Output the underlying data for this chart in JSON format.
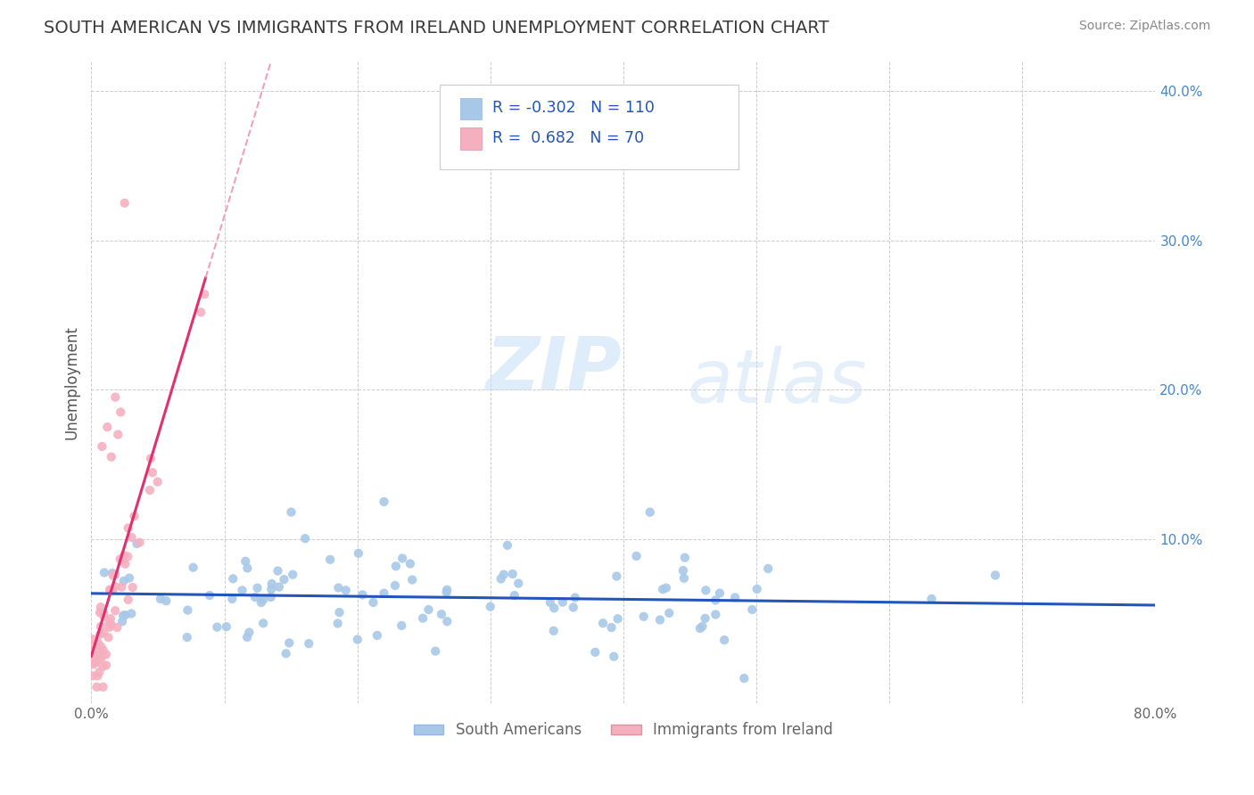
{
  "title": "SOUTH AMERICAN VS IMMIGRANTS FROM IRELAND UNEMPLOYMENT CORRELATION CHART",
  "source_text": "Source: ZipAtlas.com",
  "ylabel": "Unemployment",
  "xlim": [
    0.0,
    0.8
  ],
  "ylim": [
    -0.01,
    0.42
  ],
  "xticks": [
    0.0,
    0.1,
    0.2,
    0.3,
    0.4,
    0.5,
    0.6,
    0.7,
    0.8
  ],
  "xtick_labels": [
    "0.0%",
    "",
    "",
    "",
    "",
    "",
    "",
    "",
    "80.0%"
  ],
  "right_yticks": [
    0.1,
    0.2,
    0.3,
    0.4
  ],
  "right_ytick_labels": [
    "10.0%",
    "20.0%",
    "30.0%",
    "40.0%"
  ],
  "blue_scatter_color": "#a8c8e8",
  "pink_scatter_color": "#f5b0c0",
  "blue_line_color": "#2255bb",
  "pink_line_color": "#e03070",
  "pink_line_dashed_color": "#f0a0b8",
  "blue_r": "-0.302",
  "blue_n": "110",
  "pink_r": "0.682",
  "pink_n": "70",
  "legend_label_blue": "South Americans",
  "legend_label_pink": "Immigrants from Ireland",
  "watermark_zip": "ZIP",
  "watermark_atlas": "atlas",
  "title_color": "#3a3a3a",
  "title_fontsize": 14,
  "source_fontsize": 10,
  "axis_label_color": "#555555",
  "tick_color": "#666666",
  "right_tick_color": "#4488cc",
  "grid_color": "#cccccc",
  "seed": 7
}
